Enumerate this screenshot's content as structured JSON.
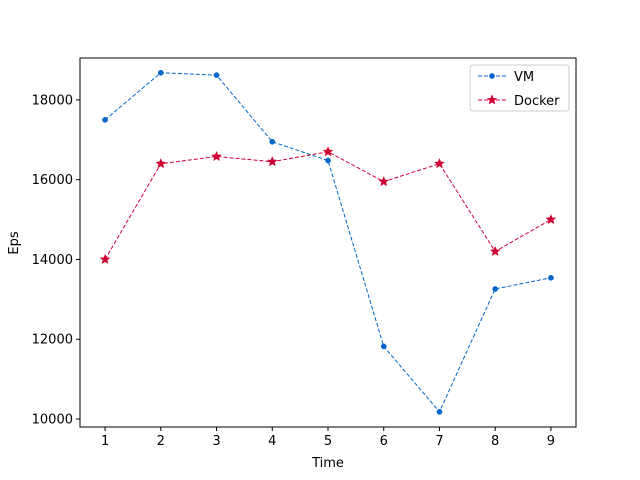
{
  "chart_data": {
    "type": "line",
    "title": "",
    "xlabel": "Time",
    "ylabel": "Eps",
    "x": [
      1,
      2,
      3,
      4,
      5,
      6,
      7,
      8,
      9
    ],
    "xlim": [
      0.55,
      9.45
    ],
    "ylim": [
      9800,
      19050
    ],
    "xticks": [
      1,
      2,
      3,
      4,
      5,
      6,
      7,
      8,
      9
    ],
    "yticks": [
      10000,
      12000,
      14000,
      16000,
      18000
    ],
    "grid": false,
    "legend_position": "top-right",
    "series": [
      {
        "name": "VM",
        "color": "#0066cc",
        "marker": "circle",
        "line_style": "dashed",
        "values": [
          17500,
          18680,
          18620,
          16950,
          16480,
          11820,
          10180,
          13260,
          13540
        ]
      },
      {
        "name": "Docker",
        "color": "#cc0033",
        "marker": "star",
        "line_style": "dashed",
        "values": [
          14000,
          16400,
          16580,
          16450,
          16700,
          15950,
          16400,
          14200,
          15000
        ]
      }
    ]
  }
}
